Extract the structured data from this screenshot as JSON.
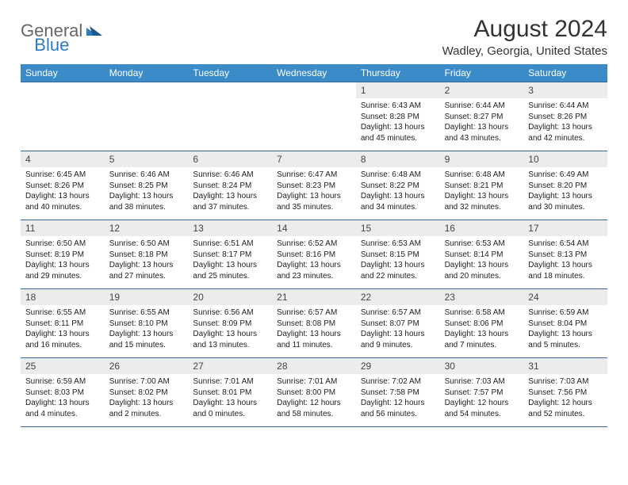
{
  "logo": {
    "text_general": "General",
    "text_blue": "Blue"
  },
  "title": "August 2024",
  "location": "Wadley, Georgia, United States",
  "colors": {
    "header_bg": "#3b8bc9",
    "header_text": "#ffffff",
    "row_border": "#3b6a9a",
    "daynum_bg": "#ececec",
    "logo_gray": "#666666",
    "logo_blue": "#2d7cc1"
  },
  "weekdays": [
    "Sunday",
    "Monday",
    "Tuesday",
    "Wednesday",
    "Thursday",
    "Friday",
    "Saturday"
  ],
  "weeks": [
    [
      null,
      null,
      null,
      null,
      {
        "num": "1",
        "sunrise": "Sunrise: 6:43 AM",
        "sunset": "Sunset: 8:28 PM",
        "daylight": "Daylight: 13 hours and 45 minutes."
      },
      {
        "num": "2",
        "sunrise": "Sunrise: 6:44 AM",
        "sunset": "Sunset: 8:27 PM",
        "daylight": "Daylight: 13 hours and 43 minutes."
      },
      {
        "num": "3",
        "sunrise": "Sunrise: 6:44 AM",
        "sunset": "Sunset: 8:26 PM",
        "daylight": "Daylight: 13 hours and 42 minutes."
      }
    ],
    [
      {
        "num": "4",
        "sunrise": "Sunrise: 6:45 AM",
        "sunset": "Sunset: 8:26 PM",
        "daylight": "Daylight: 13 hours and 40 minutes."
      },
      {
        "num": "5",
        "sunrise": "Sunrise: 6:46 AM",
        "sunset": "Sunset: 8:25 PM",
        "daylight": "Daylight: 13 hours and 38 minutes."
      },
      {
        "num": "6",
        "sunrise": "Sunrise: 6:46 AM",
        "sunset": "Sunset: 8:24 PM",
        "daylight": "Daylight: 13 hours and 37 minutes."
      },
      {
        "num": "7",
        "sunrise": "Sunrise: 6:47 AM",
        "sunset": "Sunset: 8:23 PM",
        "daylight": "Daylight: 13 hours and 35 minutes."
      },
      {
        "num": "8",
        "sunrise": "Sunrise: 6:48 AM",
        "sunset": "Sunset: 8:22 PM",
        "daylight": "Daylight: 13 hours and 34 minutes."
      },
      {
        "num": "9",
        "sunrise": "Sunrise: 6:48 AM",
        "sunset": "Sunset: 8:21 PM",
        "daylight": "Daylight: 13 hours and 32 minutes."
      },
      {
        "num": "10",
        "sunrise": "Sunrise: 6:49 AM",
        "sunset": "Sunset: 8:20 PM",
        "daylight": "Daylight: 13 hours and 30 minutes."
      }
    ],
    [
      {
        "num": "11",
        "sunrise": "Sunrise: 6:50 AM",
        "sunset": "Sunset: 8:19 PM",
        "daylight": "Daylight: 13 hours and 29 minutes."
      },
      {
        "num": "12",
        "sunrise": "Sunrise: 6:50 AM",
        "sunset": "Sunset: 8:18 PM",
        "daylight": "Daylight: 13 hours and 27 minutes."
      },
      {
        "num": "13",
        "sunrise": "Sunrise: 6:51 AM",
        "sunset": "Sunset: 8:17 PM",
        "daylight": "Daylight: 13 hours and 25 minutes."
      },
      {
        "num": "14",
        "sunrise": "Sunrise: 6:52 AM",
        "sunset": "Sunset: 8:16 PM",
        "daylight": "Daylight: 13 hours and 23 minutes."
      },
      {
        "num": "15",
        "sunrise": "Sunrise: 6:53 AM",
        "sunset": "Sunset: 8:15 PM",
        "daylight": "Daylight: 13 hours and 22 minutes."
      },
      {
        "num": "16",
        "sunrise": "Sunrise: 6:53 AM",
        "sunset": "Sunset: 8:14 PM",
        "daylight": "Daylight: 13 hours and 20 minutes."
      },
      {
        "num": "17",
        "sunrise": "Sunrise: 6:54 AM",
        "sunset": "Sunset: 8:13 PM",
        "daylight": "Daylight: 13 hours and 18 minutes."
      }
    ],
    [
      {
        "num": "18",
        "sunrise": "Sunrise: 6:55 AM",
        "sunset": "Sunset: 8:11 PM",
        "daylight": "Daylight: 13 hours and 16 minutes."
      },
      {
        "num": "19",
        "sunrise": "Sunrise: 6:55 AM",
        "sunset": "Sunset: 8:10 PM",
        "daylight": "Daylight: 13 hours and 15 minutes."
      },
      {
        "num": "20",
        "sunrise": "Sunrise: 6:56 AM",
        "sunset": "Sunset: 8:09 PM",
        "daylight": "Daylight: 13 hours and 13 minutes."
      },
      {
        "num": "21",
        "sunrise": "Sunrise: 6:57 AM",
        "sunset": "Sunset: 8:08 PM",
        "daylight": "Daylight: 13 hours and 11 minutes."
      },
      {
        "num": "22",
        "sunrise": "Sunrise: 6:57 AM",
        "sunset": "Sunset: 8:07 PM",
        "daylight": "Daylight: 13 hours and 9 minutes."
      },
      {
        "num": "23",
        "sunrise": "Sunrise: 6:58 AM",
        "sunset": "Sunset: 8:06 PM",
        "daylight": "Daylight: 13 hours and 7 minutes."
      },
      {
        "num": "24",
        "sunrise": "Sunrise: 6:59 AM",
        "sunset": "Sunset: 8:04 PM",
        "daylight": "Daylight: 13 hours and 5 minutes."
      }
    ],
    [
      {
        "num": "25",
        "sunrise": "Sunrise: 6:59 AM",
        "sunset": "Sunset: 8:03 PM",
        "daylight": "Daylight: 13 hours and 4 minutes."
      },
      {
        "num": "26",
        "sunrise": "Sunrise: 7:00 AM",
        "sunset": "Sunset: 8:02 PM",
        "daylight": "Daylight: 13 hours and 2 minutes."
      },
      {
        "num": "27",
        "sunrise": "Sunrise: 7:01 AM",
        "sunset": "Sunset: 8:01 PM",
        "daylight": "Daylight: 13 hours and 0 minutes."
      },
      {
        "num": "28",
        "sunrise": "Sunrise: 7:01 AM",
        "sunset": "Sunset: 8:00 PM",
        "daylight": "Daylight: 12 hours and 58 minutes."
      },
      {
        "num": "29",
        "sunrise": "Sunrise: 7:02 AM",
        "sunset": "Sunset: 7:58 PM",
        "daylight": "Daylight: 12 hours and 56 minutes."
      },
      {
        "num": "30",
        "sunrise": "Sunrise: 7:03 AM",
        "sunset": "Sunset: 7:57 PM",
        "daylight": "Daylight: 12 hours and 54 minutes."
      },
      {
        "num": "31",
        "sunrise": "Sunrise: 7:03 AM",
        "sunset": "Sunset: 7:56 PM",
        "daylight": "Daylight: 12 hours and 52 minutes."
      }
    ]
  ]
}
